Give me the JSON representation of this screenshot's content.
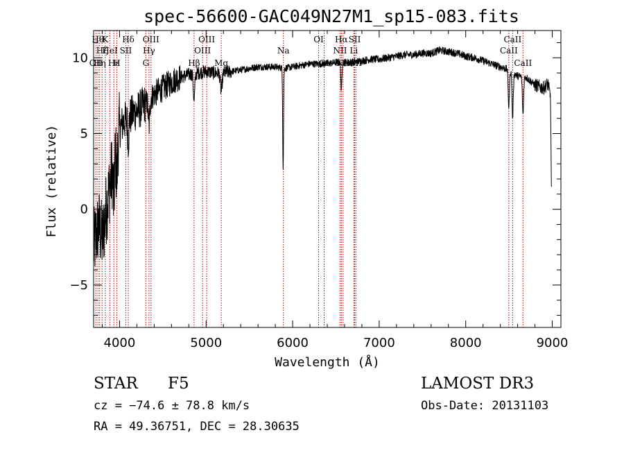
{
  "chart_data": {
    "type": "line",
    "title": "spec-56600-GAC049N27M1_sp15-083.fits",
    "xlabel": "Wavelength (Å)",
    "ylabel": "Flux (relative)",
    "xlim": [
      3700,
      9100
    ],
    "ylim": [
      -7.8,
      11.8
    ],
    "x_ticks": [
      {
        "value": 4000,
        "label": "4000"
      },
      {
        "value": 5000,
        "label": "5000"
      },
      {
        "value": 6000,
        "label": "6000"
      },
      {
        "value": 7000,
        "label": "7000"
      },
      {
        "value": 8000,
        "label": "8000"
      },
      {
        "value": 9000,
        "label": "9000"
      }
    ],
    "y_ticks": [
      {
        "value": -5,
        "label": "−5"
      },
      {
        "value": 0,
        "label": "0"
      },
      {
        "value": 5,
        "label": "5"
      },
      {
        "value": 10,
        "label": "10"
      }
    ],
    "x_minor_step": 200,
    "y_minor_step": 1,
    "continuum": [
      [
        3700,
        -2.5
      ],
      [
        3760,
        -1.0
      ],
      [
        3800,
        -2.0
      ],
      [
        3850,
        0.2
      ],
      [
        3900,
        2.0
      ],
      [
        3950,
        4.3
      ],
      [
        4000,
        5.3
      ],
      [
        4050,
        5.8
      ],
      [
        4100,
        6.0
      ],
      [
        4150,
        6.3
      ],
      [
        4200,
        6.5
      ],
      [
        4250,
        6.7
      ],
      [
        4300,
        7.0
      ],
      [
        4350,
        7.3
      ],
      [
        4400,
        7.6
      ],
      [
        4450,
        7.8
      ],
      [
        4500,
        8.0
      ],
      [
        4550,
        8.2
      ],
      [
        4600,
        8.4
      ],
      [
        4650,
        8.6
      ],
      [
        4700,
        8.7
      ],
      [
        4800,
        8.9
      ],
      [
        4900,
        9.0
      ],
      [
        5000,
        9.1
      ],
      [
        5100,
        9.0
      ],
      [
        5200,
        9.0
      ],
      [
        5300,
        9.1
      ],
      [
        5400,
        9.2
      ],
      [
        5500,
        9.3
      ],
      [
        5600,
        9.4
      ],
      [
        5700,
        9.4
      ],
      [
        5800,
        9.4
      ],
      [
        5900,
        9.3
      ],
      [
        6000,
        9.4
      ],
      [
        6100,
        9.5
      ],
      [
        6200,
        9.6
      ],
      [
        6300,
        9.6
      ],
      [
        6400,
        9.6
      ],
      [
        6500,
        9.7
      ],
      [
        6600,
        9.7
      ],
      [
        6700,
        9.7
      ],
      [
        6800,
        9.8
      ],
      [
        6900,
        9.9
      ],
      [
        7000,
        9.9
      ],
      [
        7100,
        10.0
      ],
      [
        7200,
        10.1
      ],
      [
        7300,
        10.2
      ],
      [
        7400,
        10.2
      ],
      [
        7500,
        10.3
      ],
      [
        7600,
        10.3
      ],
      [
        7700,
        10.5
      ],
      [
        7800,
        10.4
      ],
      [
        7900,
        10.3
      ],
      [
        8000,
        10.1
      ],
      [
        8100,
        10.0
      ],
      [
        8200,
        9.8
      ],
      [
        8300,
        9.6
      ],
      [
        8400,
        9.4
      ],
      [
        8500,
        9.2
      ],
      [
        8600,
        8.8
      ],
      [
        8700,
        8.7
      ],
      [
        8800,
        8.2
      ],
      [
        8900,
        8.0
      ],
      [
        8950,
        8.3
      ],
      [
        8980,
        7.4
      ],
      [
        8990,
        1.5
      ]
    ],
    "absorption_features": [
      {
        "center": 3934,
        "depth": 3.0,
        "width": 12
      },
      {
        "center": 3968,
        "depth": 2.5,
        "width": 12
      },
      {
        "center": 4101,
        "depth": 1.5,
        "width": 10
      },
      {
        "center": 4340,
        "depth": 1.8,
        "width": 12
      },
      {
        "center": 4861,
        "depth": 1.8,
        "width": 12
      },
      {
        "center": 5175,
        "depth": 1.2,
        "width": 15
      },
      {
        "center": 5890,
        "depth": 6.5,
        "width": 7
      },
      {
        "center": 6563,
        "depth": 2.0,
        "width": 8
      },
      {
        "center": 8498,
        "depth": 2.5,
        "width": 10
      },
      {
        "center": 8542,
        "depth": 3.0,
        "width": 10
      },
      {
        "center": 8662,
        "depth": 2.5,
        "width": 10
      }
    ],
    "lines": [
      {
        "x": 3727,
        "label": "OII",
        "row": 3
      },
      {
        "x": 3750,
        "label": "Hθ",
        "row": 1
      },
      {
        "x": 3770,
        "label": "Hη",
        "row": 3
      },
      {
        "x": 3798,
        "label": "Hζ",
        "row": 2
      },
      {
        "x": 3835,
        "label": "K",
        "row": 1
      },
      {
        "x": 3889,
        "label": "HeI",
        "row": 2
      },
      {
        "x": 3934,
        "label": "Hε",
        "row": 3
      },
      {
        "x": 3968,
        "label": "H",
        "row": 3
      },
      {
        "x": 4072,
        "label": "SII",
        "row": 2
      },
      {
        "x": 4101,
        "label": "Hδ",
        "row": 1
      },
      {
        "x": 4304,
        "label": "G",
        "row": 3
      },
      {
        "x": 4340,
        "label": "Hγ",
        "row": 2
      },
      {
        "x": 4363,
        "label": "OIII",
        "row": 1
      },
      {
        "x": 4861,
        "label": "Hβ",
        "row": 3
      },
      {
        "x": 4959,
        "label": "OIII",
        "row": 2
      },
      {
        "x": 5007,
        "label": "OIII",
        "row": 1
      },
      {
        "x": 5175,
        "label": "Mg",
        "row": 3
      },
      {
        "x": 5893,
        "label": "Na",
        "row": 2
      },
      {
        "x": 6300,
        "label": "OI",
        "row": 1
      },
      {
        "x": 6364,
        "label": "OI",
        "row": 3
      },
      {
        "x": 6548,
        "label": "NII",
        "row": 2
      },
      {
        "x": 6563,
        "label": "Hα",
        "row": 1
      },
      {
        "x": 6583,
        "label": "NII",
        "row": 3
      },
      {
        "x": 6707,
        "label": "Li",
        "row": 2
      },
      {
        "x": 6717,
        "label": "SII",
        "row": 1
      },
      {
        "x": 6731,
        "label": "SII",
        "row": 3
      },
      {
        "x": 8498,
        "label": "CaII",
        "row": 2
      },
      {
        "x": 8542,
        "label": "CaII",
        "row": 1
      },
      {
        "x": 8662,
        "label": "CaII",
        "row": 3
      }
    ]
  },
  "info": {
    "object_class": "STAR",
    "subclass": "F5",
    "survey": "LAMOST DR3",
    "redshift": "cz = −74.6 ± 78.8 km/s",
    "obs_date": "Obs-Date: 20131103",
    "coords": "RA =  49.36751, DEC =  28.30635"
  },
  "colors": {
    "spectrum": "#000000",
    "line_marker": "#b00000",
    "axis": "#000000",
    "background": "#ffffff"
  }
}
